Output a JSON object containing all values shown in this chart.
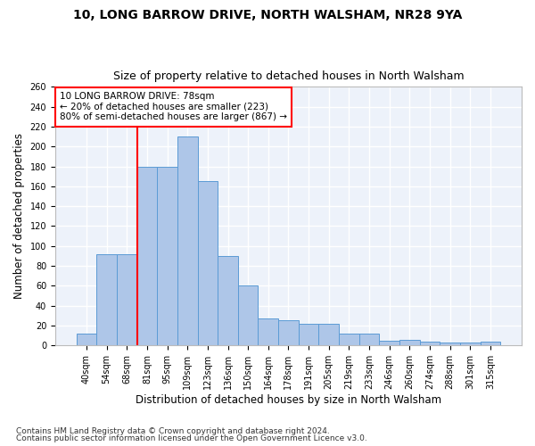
{
  "title1": "10, LONG BARROW DRIVE, NORTH WALSHAM, NR28 9YA",
  "title2": "Size of property relative to detached houses in North Walsham",
  "xlabel": "Distribution of detached houses by size in North Walsham",
  "ylabel": "Number of detached properties",
  "categories": [
    "40sqm",
    "54sqm",
    "68sqm",
    "81sqm",
    "95sqm",
    "109sqm",
    "123sqm",
    "136sqm",
    "150sqm",
    "164sqm",
    "178sqm",
    "191sqm",
    "205sqm",
    "219sqm",
    "233sqm",
    "246sqm",
    "260sqm",
    "274sqm",
    "288sqm",
    "301sqm",
    "315sqm"
  ],
  "values": [
    12,
    92,
    92,
    180,
    180,
    210,
    165,
    90,
    60,
    27,
    25,
    22,
    22,
    12,
    12,
    5,
    6,
    4,
    3,
    3,
    4
  ],
  "bar_color": "#aec6e8",
  "bar_edge_color": "#5b9bd5",
  "vline_x": 2.5,
  "vline_color": "red",
  "annotation_box_text": "10 LONG BARROW DRIVE: 78sqm\n← 20% of detached houses are smaller (223)\n80% of semi-detached houses are larger (867) →",
  "footnote1": "Contains HM Land Registry data © Crown copyright and database right 2024.",
  "footnote2": "Contains public sector information licensed under the Open Government Licence v3.0.",
  "ylim": [
    0,
    260
  ],
  "yticks": [
    0,
    20,
    40,
    60,
    80,
    100,
    120,
    140,
    160,
    180,
    200,
    220,
    240,
    260
  ],
  "bg_color": "#edf2fa",
  "grid_color": "#ffffff",
  "title1_fontsize": 10,
  "title2_fontsize": 9,
  "xlabel_fontsize": 8.5,
  "ylabel_fontsize": 8.5,
  "tick_fontsize": 7,
  "annot_fontsize": 7.5,
  "footnote_fontsize": 6.5
}
